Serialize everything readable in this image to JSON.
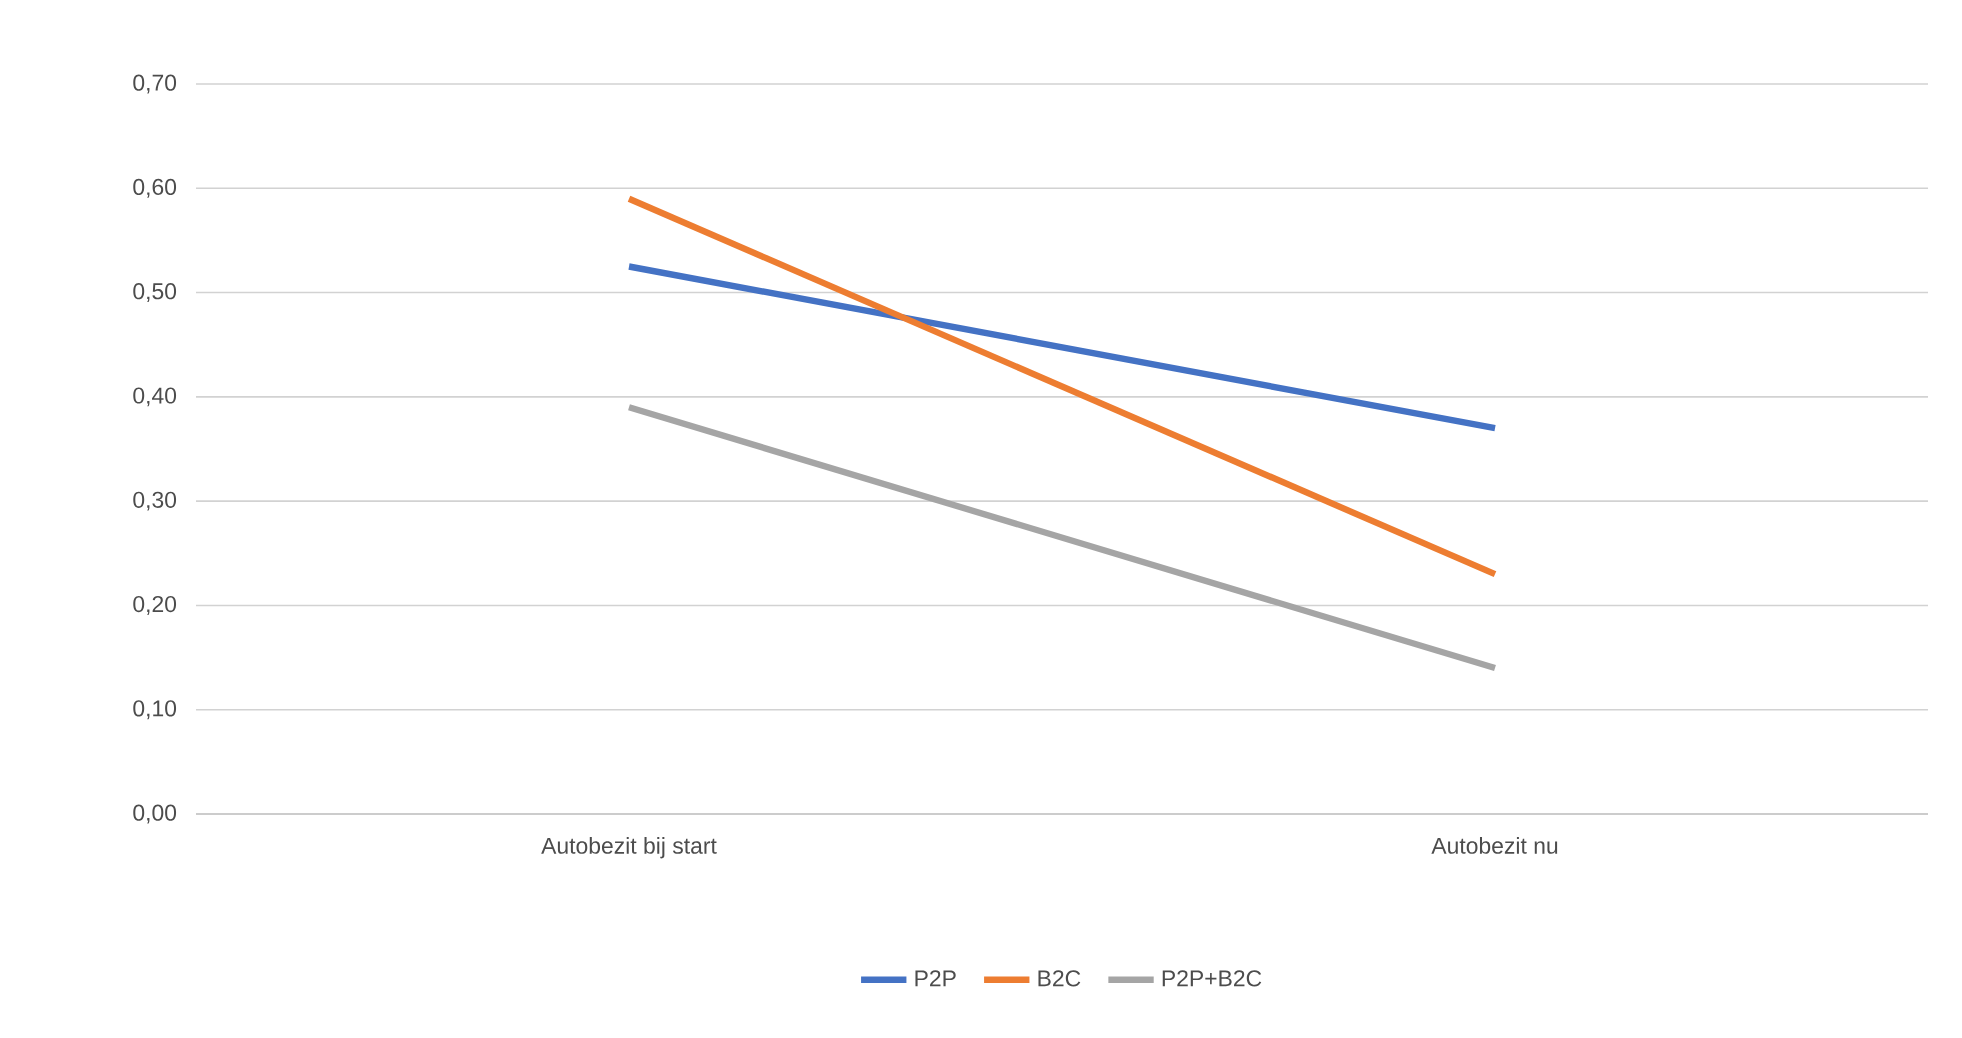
{
  "chart_data": {
    "type": "line",
    "categories": [
      "Autobezit bij start",
      "Autobezit nu"
    ],
    "series": [
      {
        "name": "P2P",
        "color": "#4472c4",
        "values": [
          0.525,
          0.37
        ]
      },
      {
        "name": "B2C",
        "color": "#ed7d31",
        "values": [
          0.59,
          0.23
        ]
      },
      {
        "name": "P2P+B2C",
        "color": "#a5a5a5",
        "values": [
          0.39,
          0.14
        ]
      }
    ],
    "ylim": [
      0,
      0.7
    ],
    "yticks": [
      {
        "value": 0,
        "label": "0,00"
      },
      {
        "value": 0.1,
        "label": "0,10"
      },
      {
        "value": 0.2,
        "label": "0,20"
      },
      {
        "value": 0.3,
        "label": "0,30"
      },
      {
        "value": 0.4,
        "label": "0,40"
      },
      {
        "value": 0.5,
        "label": "0,50"
      },
      {
        "value": 0.6,
        "label": "0,60"
      },
      {
        "value": 0.7,
        "label": "0,70"
      }
    ],
    "grid": "y",
    "legend": "bottom",
    "marker": "none",
    "line_style": "solid"
  }
}
